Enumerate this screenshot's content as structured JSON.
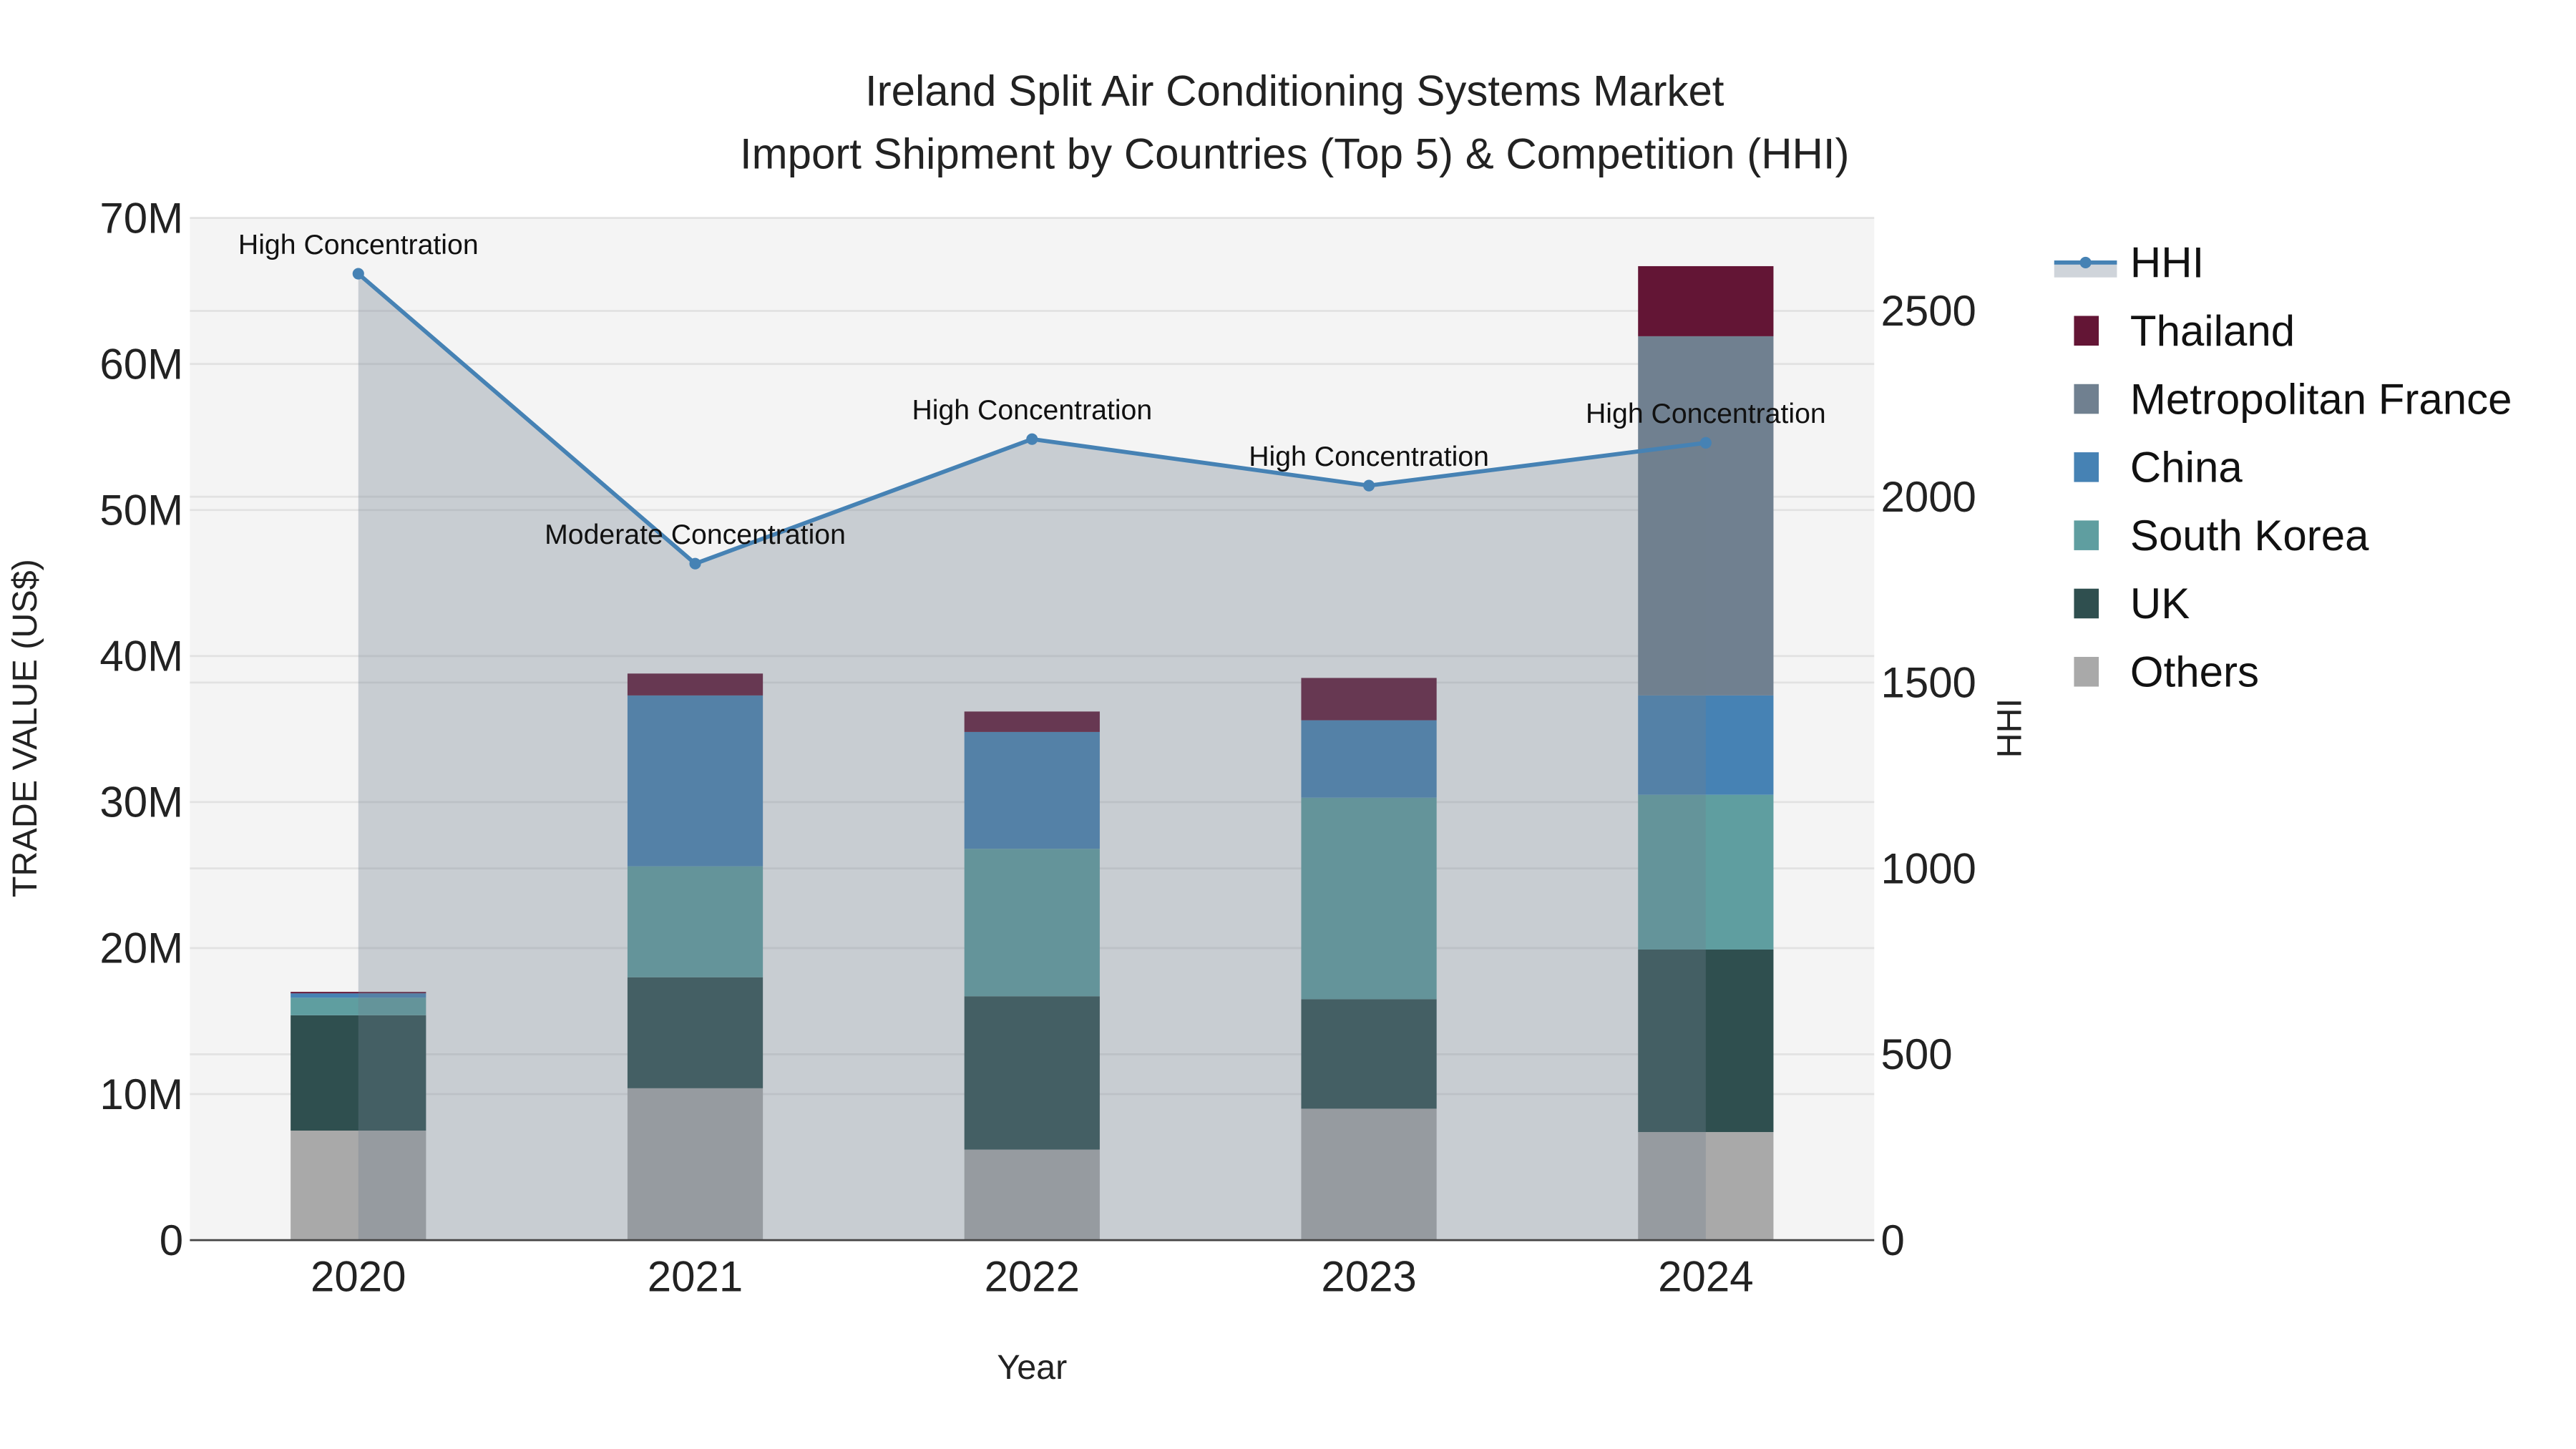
{
  "chart_data": {
    "type": "bar",
    "stacked": true,
    "title_line1": "Ireland Split Air Conditioning Systems Market",
    "title_line2": "Import Shipment by Countries (Top 5) & Competition (HHI)",
    "xlabel": "Year",
    "ylabel": "TRADE VALUE (US$)",
    "y2label": "HHI",
    "categories": [
      "2020",
      "2021",
      "2022",
      "2023",
      "2024"
    ],
    "ylim": [
      0,
      70000000
    ],
    "y_ticks": [
      0,
      10000000,
      20000000,
      30000000,
      40000000,
      50000000,
      60000000,
      70000000
    ],
    "y_tick_labels": [
      "0",
      "10M",
      "20M",
      "30M",
      "40M",
      "50M",
      "60M",
      "70M"
    ],
    "y2lim": [
      0,
      2750
    ],
    "y2_ticks": [
      0,
      500,
      1000,
      1500,
      2000,
      2500
    ],
    "y2_tick_labels": [
      "0",
      "500",
      "1000",
      "1500",
      "2000",
      "2500"
    ],
    "grid": true,
    "legend_position": "right",
    "series": [
      {
        "name": "Others",
        "color": "#A9A9A9",
        "values": [
          7500000,
          10400000,
          6200000,
          9000000,
          7400000
        ]
      },
      {
        "name": "UK",
        "color": "#2F4F4F",
        "values": [
          7900000,
          7600000,
          10500000,
          7500000,
          12500000
        ]
      },
      {
        "name": "South Korea",
        "color": "#5F9EA0",
        "values": [
          1200000,
          7600000,
          10100000,
          13800000,
          10600000
        ]
      },
      {
        "name": "China",
        "color": "#4682B4",
        "values": [
          300000,
          11700000,
          8000000,
          5300000,
          6800000
        ]
      },
      {
        "name": "Metropolitan France",
        "color": "#708090",
        "values": [
          0,
          0,
          0,
          0,
          24600000
        ]
      },
      {
        "name": "Thailand",
        "color": "#631535",
        "values": [
          100000,
          1500000,
          1400000,
          2900000,
          4800000
        ]
      }
    ],
    "hhi": {
      "name": "HHI",
      "color": "#4682B4",
      "values": [
        2600,
        1820,
        2155,
        2030,
        2145
      ],
      "annotations": [
        "High Concentration",
        "Moderate Concentration",
        "High Concentration",
        "High Concentration",
        "High Concentration"
      ]
    },
    "legend_order": [
      "HHI",
      "Thailand",
      "Metropolitan France",
      "China",
      "South Korea",
      "UK",
      "Others"
    ]
  }
}
